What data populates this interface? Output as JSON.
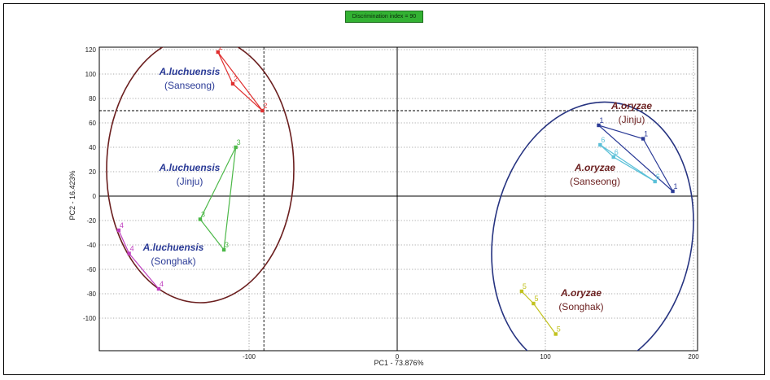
{
  "badge": "Discrimination index = 90",
  "chart_data": {
    "type": "scatter",
    "xlabel": "PC1 - 73.876%",
    "ylabel": "PC2 - 16.423%",
    "xlim": [
      -200,
      200
    ],
    "ylim": [
      -120,
      120
    ],
    "xticks": [
      -100,
      0,
      100,
      200
    ],
    "yticks": [
      120,
      100,
      80,
      60,
      40,
      20,
      0,
      -20,
      -40,
      -60,
      -80,
      -100
    ],
    "grid": "dotted",
    "series": [
      {
        "name": "2",
        "color": "#e03030",
        "points": [
          [
            -121,
            118
          ],
          [
            -111,
            92
          ],
          [
            -91,
            70
          ]
        ]
      },
      {
        "name": "3",
        "color": "#4cb848",
        "points": [
          [
            -109,
            40
          ],
          [
            -133,
            -19
          ],
          [
            -117,
            -44
          ]
        ]
      },
      {
        "name": "4",
        "color": "#c040c0",
        "points": [
          [
            -188,
            -28
          ],
          [
            -181,
            -47
          ],
          [
            -161,
            -76
          ]
        ]
      },
      {
        "name": "1",
        "color": "#2a3a96",
        "points": [
          [
            136,
            58
          ],
          [
            166,
            47
          ],
          [
            186,
            4
          ]
        ]
      },
      {
        "name": "6",
        "color": "#5bc0d8",
        "points": [
          [
            137,
            42
          ],
          [
            146,
            32
          ],
          [
            174,
            12
          ]
        ]
      },
      {
        "name": "5",
        "color": "#c2c21e",
        "points": [
          [
            84,
            -78
          ],
          [
            92,
            -88
          ],
          [
            107,
            -113
          ]
        ]
      }
    ],
    "crosshair": {
      "x": -90,
      "y": 70
    },
    "group_labels": [
      {
        "species": "A.luchuensis",
        "strain": "(Sanseong)"
      },
      {
        "species": "A.luchuensis",
        "strain": "(Jinju)"
      },
      {
        "species": "A.luchuensis",
        "strain": "(Songhak)"
      },
      {
        "species": "A.oryzae",
        "strain": "(Jinju)"
      },
      {
        "species": "A.oryzae",
        "strain": "(Sanseong)"
      },
      {
        "species": "A.oryzae",
        "strain": "(Songhak)"
      }
    ]
  }
}
